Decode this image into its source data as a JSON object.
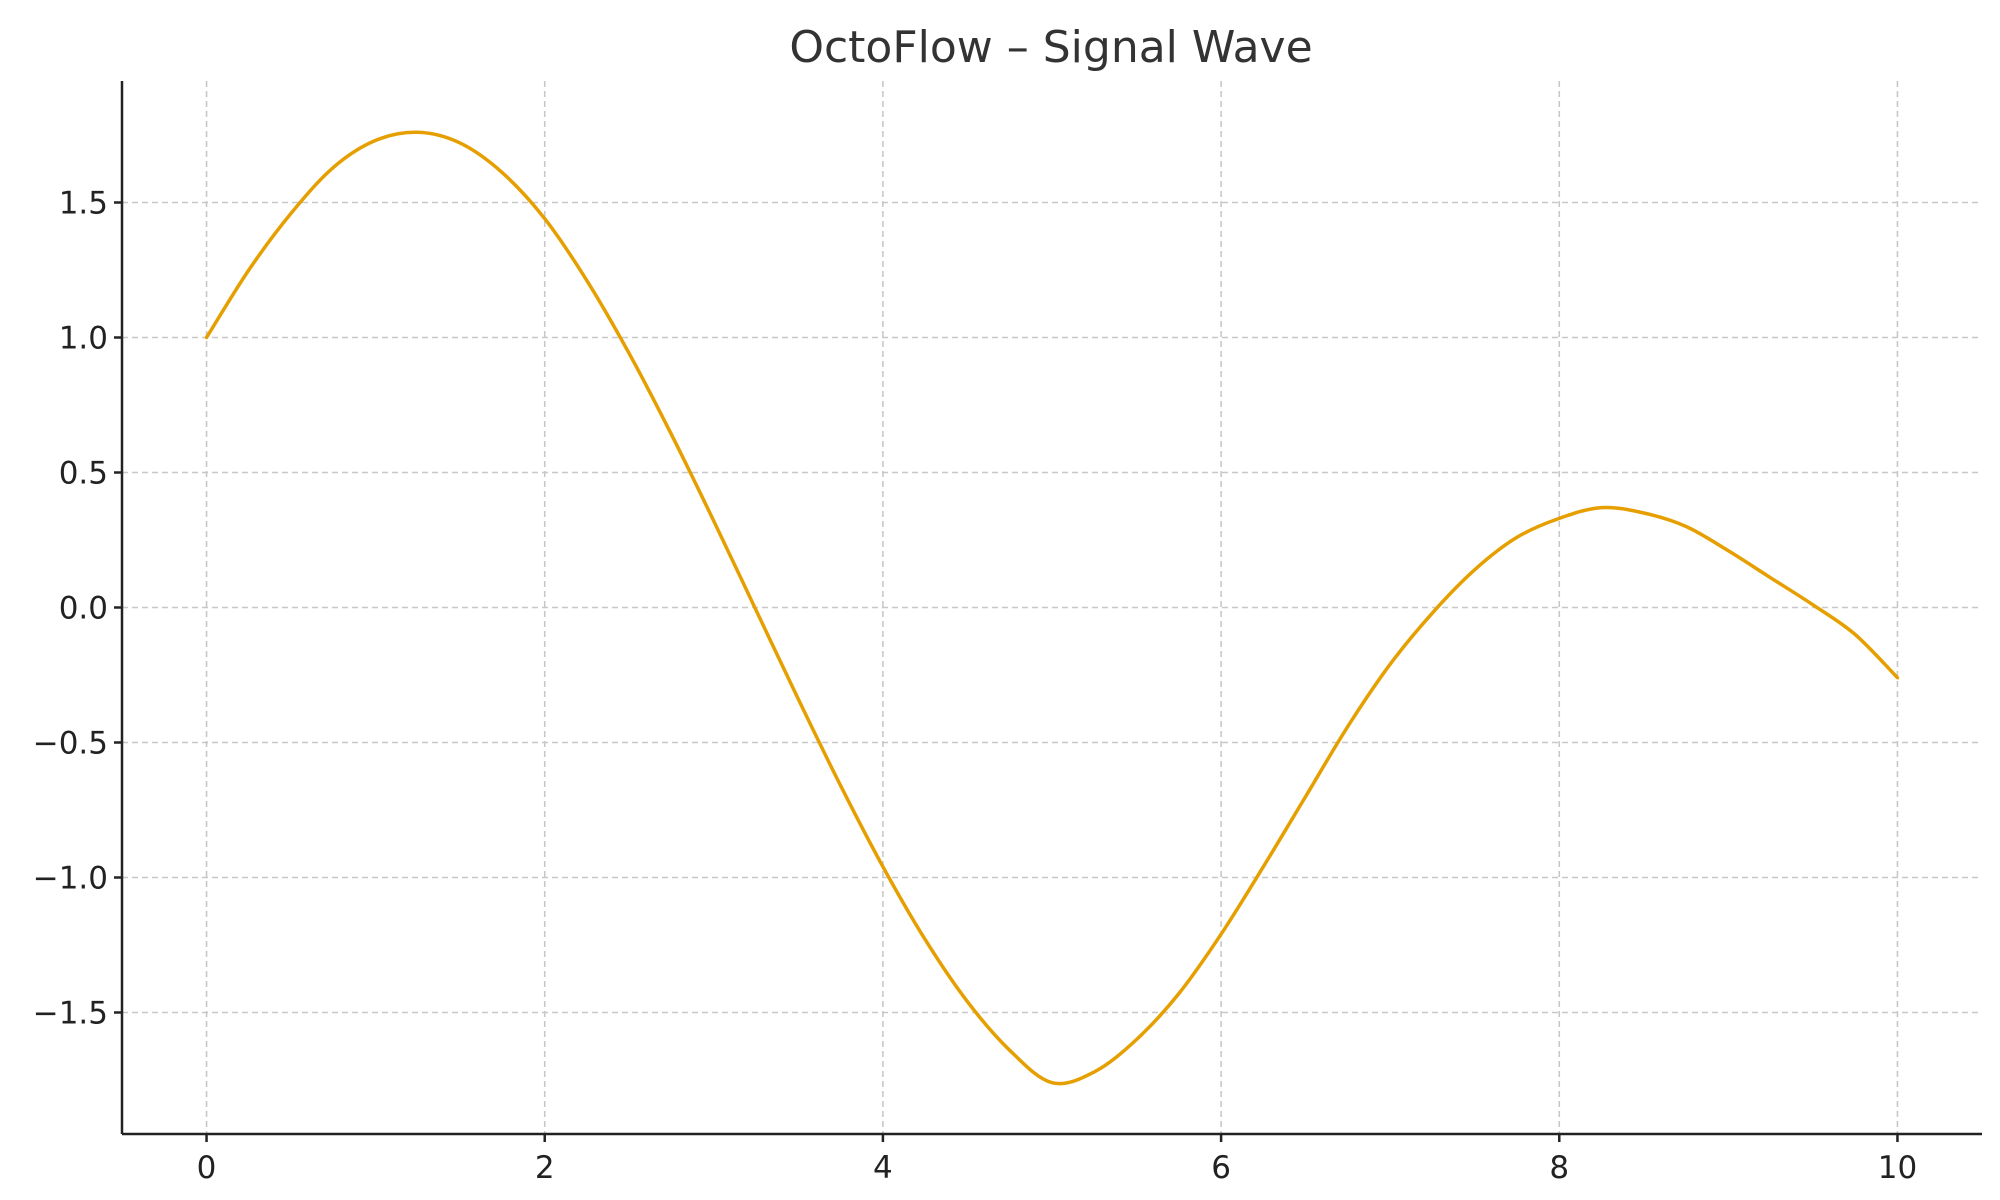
{
  "chart_data": {
    "type": "line",
    "title": "OctoFlow – Signal Wave",
    "xlabel": "",
    "ylabel": "",
    "xlim": [
      -0.5,
      10.5
    ],
    "ylim": [
      -1.95,
      1.95
    ],
    "grid": true,
    "xticks": [
      0,
      2,
      4,
      6,
      8,
      10
    ],
    "xtick_labels": [
      "0",
      "2",
      "4",
      "6",
      "8",
      "10"
    ],
    "yticks": [
      1.5,
      1.0,
      0.5,
      0.0,
      -0.5,
      -1.0,
      -1.5
    ],
    "ytick_labels": [
      "1.5",
      "1.0",
      "0.5",
      "0.0",
      "−0.5",
      "−1.0",
      "−1.5"
    ],
    "series": [
      {
        "color": "#E69F00",
        "x": [
          0,
          0.25,
          0.5,
          0.75,
          1.0,
          1.25,
          1.5,
          1.75,
          2.0,
          2.25,
          2.5,
          2.75,
          3.0,
          3.25,
          3.5,
          3.75,
          4.0,
          4.25,
          4.5,
          4.75,
          5.0,
          5.25,
          5.5,
          5.75,
          6.0,
          6.25,
          6.5,
          6.75,
          7.0,
          7.25,
          7.5,
          7.75,
          8.0,
          8.25,
          8.5,
          8.75,
          9.0,
          9.25,
          9.5,
          9.75,
          10.0
        ],
        "y": [
          1.0,
          1.25,
          1.46,
          1.63,
          1.73,
          1.76,
          1.72,
          1.61,
          1.44,
          1.21,
          0.94,
          0.64,
          0.32,
          -0.01,
          -0.34,
          -0.66,
          -0.96,
          -1.23,
          -1.46,
          -1.64,
          -1.76,
          -1.72,
          -1.6,
          -1.43,
          -1.21,
          -0.96,
          -0.7,
          -0.44,
          -0.21,
          -0.02,
          0.14,
          0.26,
          0.33,
          0.37,
          0.35,
          0.3,
          0.21,
          0.11,
          0.01,
          -0.1,
          -0.26
        ]
      }
    ]
  }
}
